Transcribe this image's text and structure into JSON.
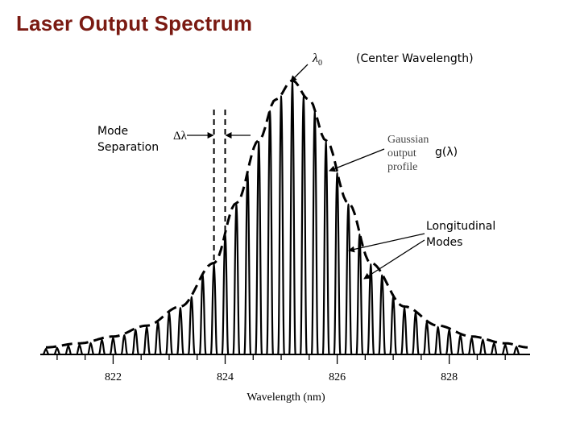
{
  "slide": {
    "title": "Laser Output Spectrum"
  },
  "annotations": {
    "center_label": "(Center Wavelength)",
    "mode_line1": "Mode",
    "mode_line2": "Separation",
    "g_label": "g(λ)",
    "longitudinal_line1": "Longitudinal",
    "longitudinal_line2": "Modes"
  },
  "figure_labels": {
    "lambda_symbol": "λ",
    "lambda_subscript": "0",
    "delta_lambda": "Δλ",
    "gaussian_line1": "Gaussian",
    "gaussian_line2": "output",
    "gaussian_line3": "profile"
  },
  "chart_data": {
    "type": "line",
    "xlabel": "Wavelength (nm)",
    "ylabel": "",
    "xlim": [
      820.8,
      829.4
    ],
    "ylim": [
      0,
      1
    ],
    "xticks": [
      822,
      824,
      826,
      828
    ],
    "grid": false,
    "envelope": {
      "name": "Gaussian output profile",
      "center": 825.2,
      "style": "dashed",
      "x": [
        820.8,
        821.4,
        822.0,
        822.6,
        823.2,
        823.8,
        824.2,
        824.6,
        824.9,
        825.2,
        825.5,
        825.8,
        826.2,
        826.6,
        827.2,
        827.8,
        828.4,
        829.0,
        829.4
      ],
      "y": [
        0.02,
        0.035,
        0.06,
        0.1,
        0.17,
        0.33,
        0.55,
        0.78,
        0.93,
        1.0,
        0.93,
        0.78,
        0.55,
        0.33,
        0.17,
        0.1,
        0.06,
        0.035,
        0.02
      ]
    },
    "modes": {
      "name": "Longitudinal Modes",
      "spacing": 0.2,
      "first_wavelength": 820.8,
      "count": 43,
      "peak_heights_follow_envelope": true
    },
    "mode_separation_marker": {
      "from": 823.8,
      "to": 824.0
    }
  }
}
